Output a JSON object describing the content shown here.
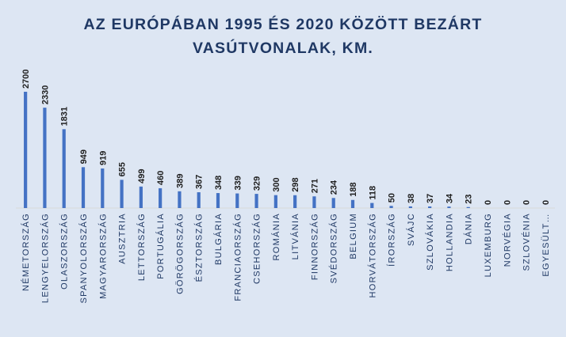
{
  "title_line1": "AZ EURÓPÁBAN 1995 ÉS 2020 KÖZÖTT BEZÁRT",
  "title_line2": "VASÚTVONALAK, KM.",
  "colors": {
    "background": "#dde6f3",
    "bar": "#4472c4",
    "text": "#1f3864",
    "label": "#1f1f1f"
  },
  "chart_data": {
    "type": "bar",
    "title": "AZ EURÓPÁBAN 1995 ÉS 2020 KÖZÖTT BEZÁRT VASÚTVONALAK, KM.",
    "categories": [
      "NÉMETORSZÁG",
      "LENGYELORSZÁG",
      "OLASZORSZÁG",
      "SPANYOLORSZÁG",
      "MAGYARORSZÁG",
      "AUSZTRIA",
      "LETTORSZÁG",
      "PORTUGÁLIA",
      "GÖRÖGORSZÁG",
      "ÉSZTORSZÁG",
      "BULGÁRIA",
      "FRANCIAORSZÁG",
      "CSEHORSZÁG",
      "ROMÁNIA",
      "LITVÁNIA",
      "FINNORSZÁG",
      "SVÉDORSZÁG",
      "BELGIUM",
      "HORVÁTORSZÁG",
      "ÍRORSZÁG",
      "SVÁJC",
      "SZLOVÁKIA",
      "HOLLANDIA",
      "DÁNIA",
      "LUXEMBURG",
      "NORVÉGIA",
      "SZLOVÉNIA",
      "EGYESÜLT…"
    ],
    "values": [
      2700,
      2330,
      1831,
      949,
      919,
      655,
      499,
      460,
      389,
      367,
      348,
      339,
      329,
      300,
      298,
      271,
      234,
      188,
      118,
      50,
      38,
      37,
      34,
      23,
      0,
      0,
      0,
      0
    ],
    "xlabel": "",
    "ylabel": "",
    "ylim": [
      0,
      2700
    ],
    "grid": false,
    "legend": "none"
  }
}
